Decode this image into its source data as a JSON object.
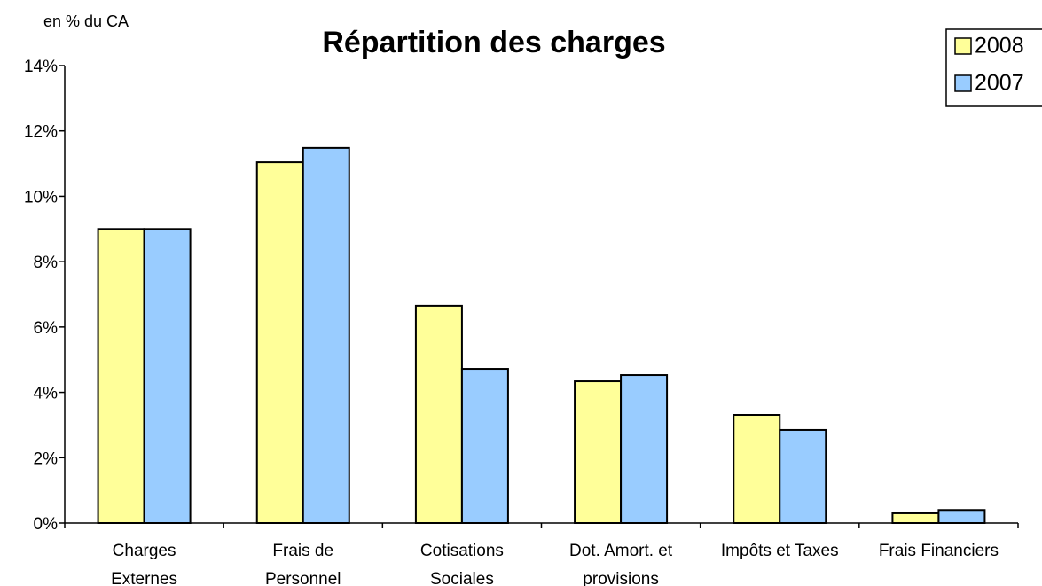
{
  "chart_data": {
    "type": "bar",
    "title": "Répartition des charges",
    "y_label": "en % du CA",
    "categories": [
      "Charges\nExternes",
      "Frais de\nPersonnel",
      "Cotisations\nSociales",
      "Dot. Amort. et\nprovisions",
      "Impôts et Taxes",
      "Frais Financiers"
    ],
    "series": [
      {
        "name": "2008",
        "color": "#ffff99",
        "values": [
          9.0,
          11.04,
          6.65,
          4.34,
          3.31,
          0.3
        ]
      },
      {
        "name": "2007",
        "color": "#99ccff",
        "values": [
          9.0,
          11.48,
          4.72,
          4.53,
          2.85,
          0.4
        ]
      }
    ],
    "ylim": [
      0,
      14
    ],
    "yticks": [
      {
        "value": 0,
        "label": "0%"
      },
      {
        "value": 2,
        "label": "2%"
      },
      {
        "value": 4,
        "label": "4%"
      },
      {
        "value": 6,
        "label": "6%"
      },
      {
        "value": 8,
        "label": "8%"
      },
      {
        "value": 10,
        "label": "10%"
      },
      {
        "value": 12,
        "label": "12%"
      },
      {
        "value": 14,
        "label": "14%"
      }
    ],
    "legend": "top-right"
  }
}
